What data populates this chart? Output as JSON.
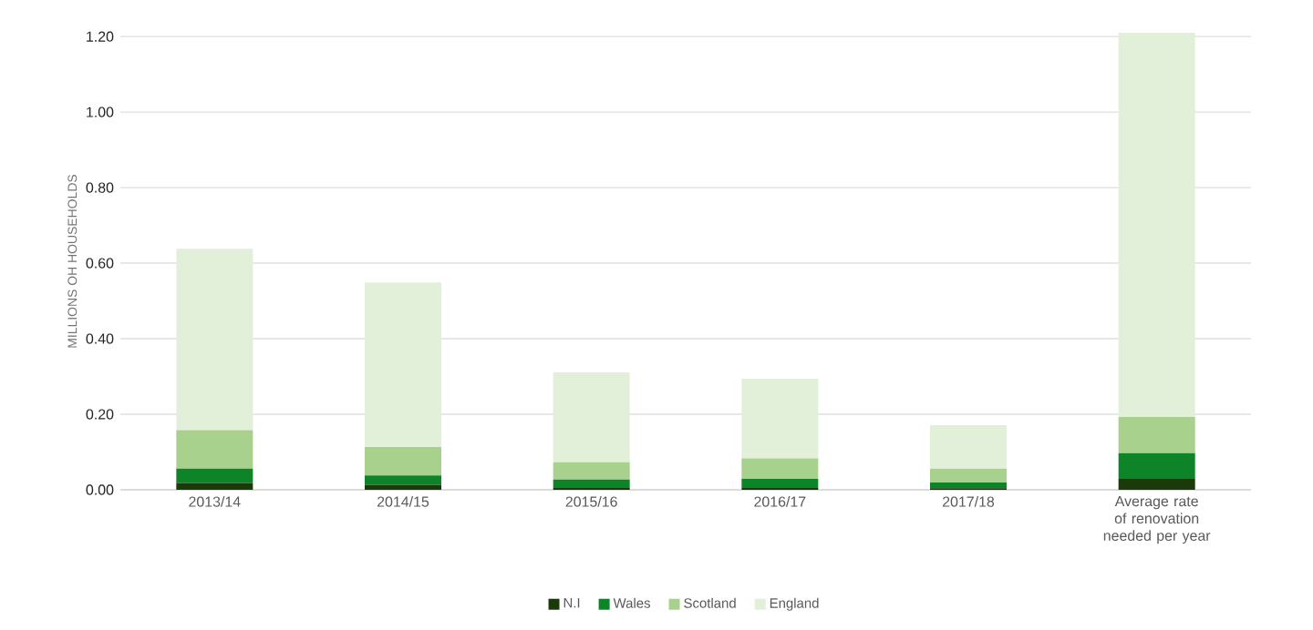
{
  "chart_data": {
    "type": "bar",
    "stacked": true,
    "ylabel": "MILLIONS OH HOUSEHOLDS",
    "categories": [
      "2013/14",
      "2014/15",
      "2015/16",
      "2016/17",
      "2017/18",
      "Average rate of renovation needed per year"
    ],
    "series": [
      {
        "name": "N.I",
        "color": "#1a3a0a",
        "values": [
          0.018,
          0.013,
          0.005,
          0.005,
          0.004,
          0.029
        ]
      },
      {
        "name": "Wales",
        "color": "#0d8428",
        "values": [
          0.038,
          0.025,
          0.022,
          0.024,
          0.015,
          0.068
        ]
      },
      {
        "name": "Scotland",
        "color": "#a8d18d",
        "values": [
          0.102,
          0.075,
          0.046,
          0.054,
          0.037,
          0.096
        ]
      },
      {
        "name": "England",
        "color": "#e2efd9",
        "values": [
          0.48,
          0.436,
          0.238,
          0.211,
          0.115,
          1.017
        ]
      }
    ],
    "ylim": [
      0,
      1.21
    ],
    "yticks": [
      {
        "value": 0,
        "label": "0.00"
      },
      {
        "value": 0.2,
        "label": "0.20"
      },
      {
        "value": 0.4,
        "label": "0.40"
      },
      {
        "value": 0.6,
        "label": "0.60"
      },
      {
        "value": 0.8,
        "label": "0.80"
      },
      {
        "value": 1.0,
        "label": "1.00"
      },
      {
        "value": 1.2,
        "label": "1.20"
      }
    ],
    "grid": "y",
    "legend": "bottom"
  }
}
